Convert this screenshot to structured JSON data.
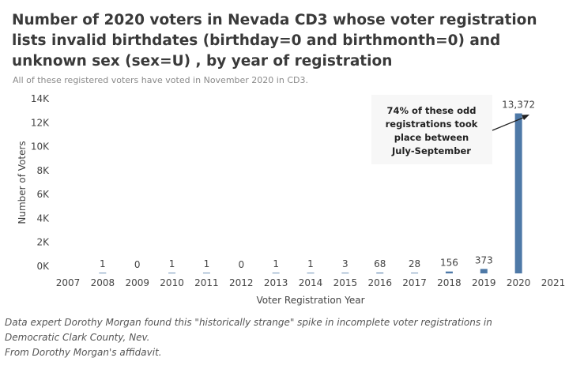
{
  "chart_data": {
    "type": "bar",
    "title": "Number of 2020 voters in Nevada CD3 whose voter registration lists invalid birthdates (birthday=0 and birthmonth=0) and unknown sex (sex=U) , by year of registration",
    "subtitle": "All of these registered voters have voted in November 2020 in CD3.",
    "xlabel": "Voter Registration Year",
    "ylabel": "Number of Voters",
    "x_ticks": [
      "2007",
      "2008",
      "2009",
      "2010",
      "2011",
      "2012",
      "2013",
      "2014",
      "2015",
      "2016",
      "2017",
      "2018",
      "2019",
      "2020",
      "2021"
    ],
    "categories": [
      "2008",
      "2009",
      "2010",
      "2011",
      "2012",
      "2013",
      "2014",
      "2015",
      "2016",
      "2017",
      "2018",
      "2019",
      "2020"
    ],
    "values": [
      1,
      0,
      1,
      1,
      0,
      1,
      1,
      3,
      68,
      28,
      156,
      373,
      13372
    ],
    "data_labels": [
      "1",
      "0",
      "1",
      "1",
      "0",
      "1",
      "1",
      "3",
      "68",
      "28",
      "156",
      "373",
      "13,372"
    ],
    "y_ticks": [
      {
        "value": 0,
        "label": "0K"
      },
      {
        "value": 2000,
        "label": "2K"
      },
      {
        "value": 4000,
        "label": "4K"
      },
      {
        "value": 6000,
        "label": "6K"
      },
      {
        "value": 8000,
        "label": "8K"
      },
      {
        "value": 10000,
        "label": "10K"
      },
      {
        "value": 12000,
        "label": "12K"
      },
      {
        "value": 14000,
        "label": "14K"
      }
    ],
    "ylim": [
      0,
      14000
    ],
    "xlim": [
      2007,
      2021
    ],
    "grid": false,
    "bar_color": "#4e79a7",
    "annotation": {
      "lines": [
        "74% of these odd",
        "registrations took",
        "place between",
        "July-September"
      ],
      "points_to": "2020"
    }
  },
  "caption": {
    "line1": "Data expert Dorothy Morgan found this \"historically strange\" spike in incomplete voter registrations in",
    "line2": "Democratic Clark County, Nev.",
    "line3": "From Dorothy Morgan's affidavit."
  }
}
